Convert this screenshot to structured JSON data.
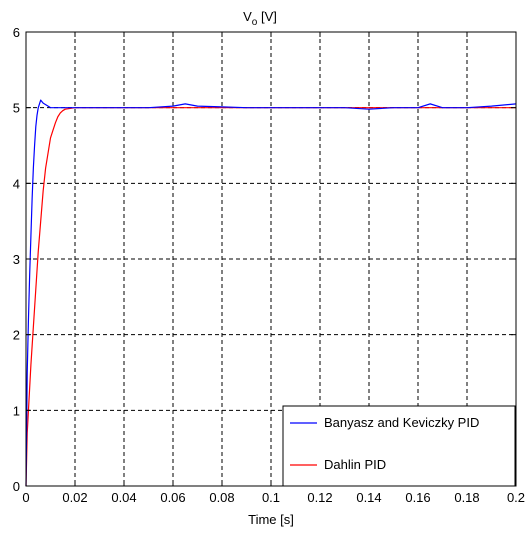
{
  "chart_data": {
    "type": "line",
    "title_main": "V",
    "title_sub": "o",
    "title_unit": " [V]",
    "xlabel": "Time  [s]",
    "ylabel": "",
    "xlim": [
      0,
      0.2
    ],
    "ylim": [
      0,
      6
    ],
    "xticks": [
      0,
      0.02,
      0.04,
      0.06,
      0.08,
      0.1,
      0.12,
      0.14,
      0.16,
      0.18,
      0.2
    ],
    "xtick_labels": [
      "0",
      "0.02",
      "0.04",
      "0.06",
      "0.08",
      "0.1",
      "0.12",
      "0.14",
      "0.16",
      "0.18",
      "0.2"
    ],
    "yticks": [
      0,
      1,
      2,
      3,
      4,
      5,
      6
    ],
    "ytick_labels": [
      "0",
      "1",
      "2",
      "3",
      "4",
      "5",
      "6"
    ],
    "grid": true,
    "legend_position": "bottom-right",
    "series": [
      {
        "name": "Banyasz and Keviczky PID",
        "color": "#0000ff",
        "x": [
          0,
          0.0005,
          0.001,
          0.0015,
          0.002,
          0.0025,
          0.003,
          0.0035,
          0.004,
          0.0045,
          0.005,
          0.0055,
          0.006,
          0.0065,
          0.007,
          0.008,
          0.009,
          0.01,
          0.012,
          0.015,
          0.02,
          0.03,
          0.04,
          0.05,
          0.06,
          0.065,
          0.07,
          0.08,
          0.09,
          0.1,
          0.11,
          0.12,
          0.13,
          0.14,
          0.15,
          0.16,
          0.165,
          0.17,
          0.18,
          0.19,
          0.2
        ],
        "y": [
          0,
          1.5,
          2.2,
          2.8,
          3.3,
          3.8,
          4.2,
          4.5,
          4.75,
          4.9,
          5.0,
          5.05,
          5.1,
          5.08,
          5.06,
          5.04,
          5.02,
          5.0,
          5.0,
          5.0,
          5.0,
          5.0,
          5.0,
          5.0,
          5.02,
          5.05,
          5.02,
          5.01,
          5.0,
          5.0,
          5.0,
          5.0,
          5.0,
          4.98,
          5.0,
          5.0,
          5.05,
          5.0,
          5.0,
          5.02,
          5.05
        ]
      },
      {
        "name": "Dahlin PID",
        "color": "#ff0000",
        "x": [
          0,
          0.0005,
          0.001,
          0.0015,
          0.002,
          0.003,
          0.004,
          0.005,
          0.006,
          0.007,
          0.008,
          0.009,
          0.01,
          0.011,
          0.012,
          0.013,
          0.014,
          0.015,
          0.016,
          0.018,
          0.02,
          0.025,
          0.03,
          0.04,
          0.05,
          0.06,
          0.07,
          0.08,
          0.09,
          0.1,
          0.11,
          0.12,
          0.13,
          0.14,
          0.15,
          0.16,
          0.17,
          0.18,
          0.19,
          0.2
        ],
        "y": [
          0,
          0.7,
          1.0,
          1.3,
          1.6,
          2.1,
          2.6,
          3.1,
          3.5,
          3.9,
          4.2,
          4.4,
          4.6,
          4.7,
          4.8,
          4.88,
          4.93,
          4.96,
          4.98,
          4.99,
          5.0,
          5.0,
          5.0,
          5.0,
          5.0,
          5.0,
          5.0,
          5.0,
          5.0,
          5.0,
          5.0,
          5.0,
          5.0,
          5.0,
          5.0,
          5.0,
          5.0,
          5.0,
          5.0,
          5.0
        ]
      }
    ]
  }
}
